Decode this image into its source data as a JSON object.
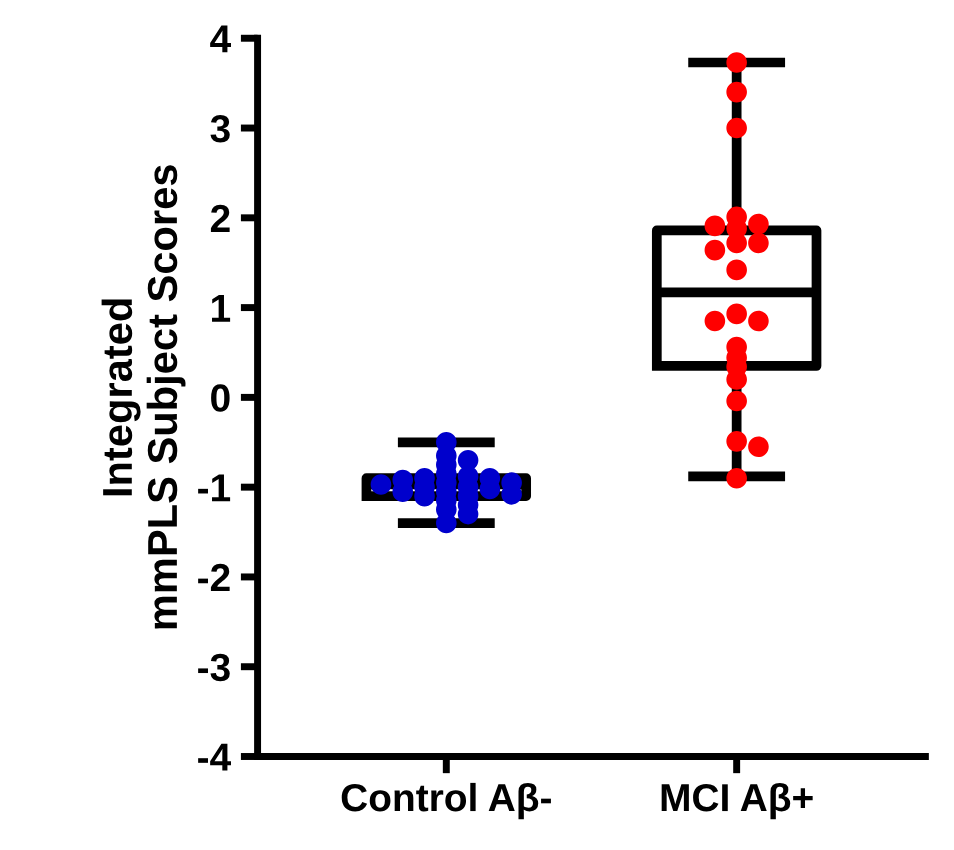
{
  "chart_data": {
    "type": "box",
    "ylabel": "Integrated\nmmPLS Subject Scores",
    "categories": [
      "Control Aβ-",
      "MCI Aβ+"
    ],
    "boxes": [
      {
        "low": -1.4,
        "q1": -1.1,
        "median": -0.97,
        "q3": -0.9,
        "high": -0.5
      },
      {
        "low": -0.88,
        "q1": 0.35,
        "median": 1.17,
        "q3": 1.86,
        "high": 3.73
      }
    ],
    "series": [
      {
        "type": "scatter",
        "color": "#0000cc",
        "x": [
          "Control Aβ-",
          "Control Aβ-",
          "Control Aβ-",
          "Control Aβ-",
          "Control Aβ-",
          "Control Aβ-",
          "Control Aβ-",
          "Control Aβ-",
          "Control Aβ-",
          "Control Aβ-",
          "Control Aβ-",
          "Control Aβ-",
          "Control Aβ-",
          "Control Aβ-",
          "Control Aβ-",
          "Control Aβ-",
          "Control Aβ-",
          "Control Aβ-",
          "Control Aβ-",
          "Control Aβ-",
          "Control Aβ-",
          "Control Aβ-",
          "Control Aβ-",
          "Control Aβ-",
          "Control Aβ-"
        ],
        "values": [
          -0.5,
          -0.65,
          -0.7,
          -0.75,
          -0.85,
          -0.88,
          -0.9,
          -0.9,
          -0.92,
          -0.95,
          -0.95,
          -0.97,
          -1.0,
          -1.0,
          -1.02,
          -1.05,
          -1.05,
          -1.08,
          -1.1,
          -1.1,
          -1.15,
          -1.2,
          -1.25,
          -1.3,
          -1.4
        ]
      },
      {
        "type": "scatter",
        "color": "#ff0000",
        "x": [
          "MCI Aβ+",
          "MCI Aβ+",
          "MCI Aβ+",
          "MCI Aβ+",
          "MCI Aβ+",
          "MCI Aβ+",
          "MCI Aβ+",
          "MCI Aβ+",
          "MCI Aβ+",
          "MCI Aβ+",
          "MCI Aβ+",
          "MCI Aβ+",
          "MCI Aβ+",
          "MCI Aβ+",
          "MCI Aβ+",
          "MCI Aβ+",
          "MCI Aβ+",
          "MCI Aβ+",
          "MCI Aβ+",
          "MCI Aβ+",
          "MCI Aβ+",
          "MCI Aβ+"
        ],
        "values": [
          3.73,
          3.4,
          3.0,
          2.01,
          1.93,
          1.88,
          1.91,
          1.72,
          1.72,
          1.64,
          1.42,
          0.93,
          0.85,
          0.85,
          0.56,
          0.44,
          0.34,
          0.2,
          -0.04,
          -0.49,
          -0.55,
          -0.9
        ]
      }
    ],
    "ylim": [
      -4,
      4
    ],
    "yticks": [
      -4,
      -3,
      -2,
      -1,
      0,
      1,
      2,
      3,
      4
    ],
    "grid": false,
    "legend": false
  }
}
